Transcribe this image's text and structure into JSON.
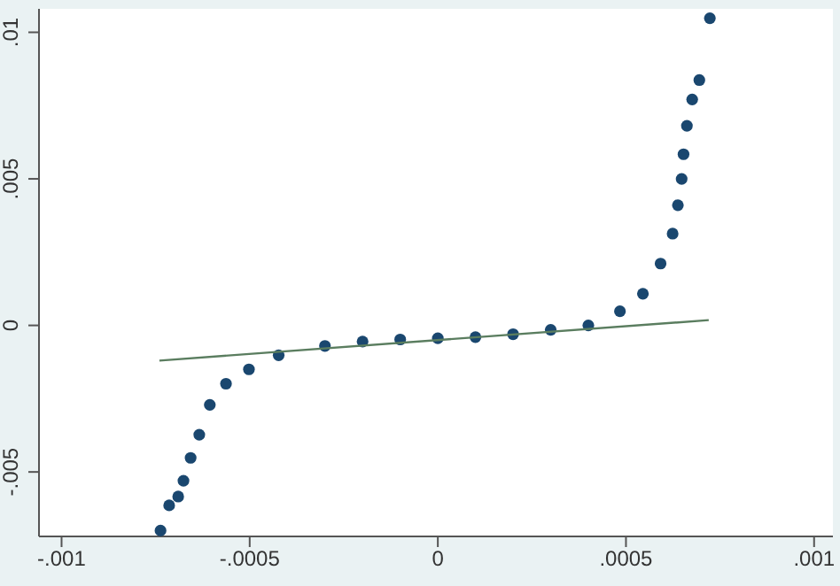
{
  "chart_data": {
    "type": "scatter",
    "xlim": [
      -0.00106,
      0.00105
    ],
    "ylim": [
      -0.0072,
      0.0108
    ],
    "xticks": [
      {
        "value": -0.001,
        "label": "-.001"
      },
      {
        "value": -0.0005,
        "label": "-.0005"
      },
      0,
      {
        "value": 0.0005,
        "label": ".0005"
      },
      {
        "value": 0.001,
        "label": ".001"
      }
    ],
    "yticks": [
      {
        "value": -0.005,
        "label": "-.005"
      },
      0,
      {
        "value": 0.005,
        "label": ".005"
      },
      {
        "value": 0.01,
        "label": ".01"
      }
    ],
    "grid": false,
    "legend": false,
    "series": [
      {
        "color": "#1a476f",
        "marker": "circle",
        "x": [
          -0.000737,
          -0.000714,
          -0.00069,
          -0.000676,
          -0.000657,
          -0.000634,
          -0.000606,
          -0.000563,
          -0.000502,
          -0.000423,
          -0.0003,
          -0.0002,
          -0.0001,
          0,
          0.0001,
          0.0002,
          0.0003,
          0.0004,
          0.000484,
          0.000545,
          0.000592,
          0.000624,
          0.000638,
          0.000648,
          0.000653,
          0.000662,
          0.000676,
          0.000695,
          0.000723
        ],
        "values": [
          -0.007,
          -0.00614,
          -0.00584,
          -0.0053,
          -0.00452,
          -0.00373,
          -0.00271,
          -0.00199,
          -0.0015,
          -0.00102,
          -0.0007,
          -0.00055,
          -0.00048,
          -0.00044,
          -0.0004,
          -0.0003,
          -0.00015,
          0.0,
          0.00048,
          0.00108,
          0.00211,
          0.00313,
          0.0041,
          0.005,
          0.00584,
          0.00681,
          0.00771,
          0.00837,
          0.01048
        ]
      },
      {
        "type": "line",
        "marker": "none",
        "color": "#5a7d5f",
        "x": [
          -0.00074,
          0.00072
        ],
        "values": [
          -0.0012,
          0.00018
        ]
      }
    ]
  }
}
